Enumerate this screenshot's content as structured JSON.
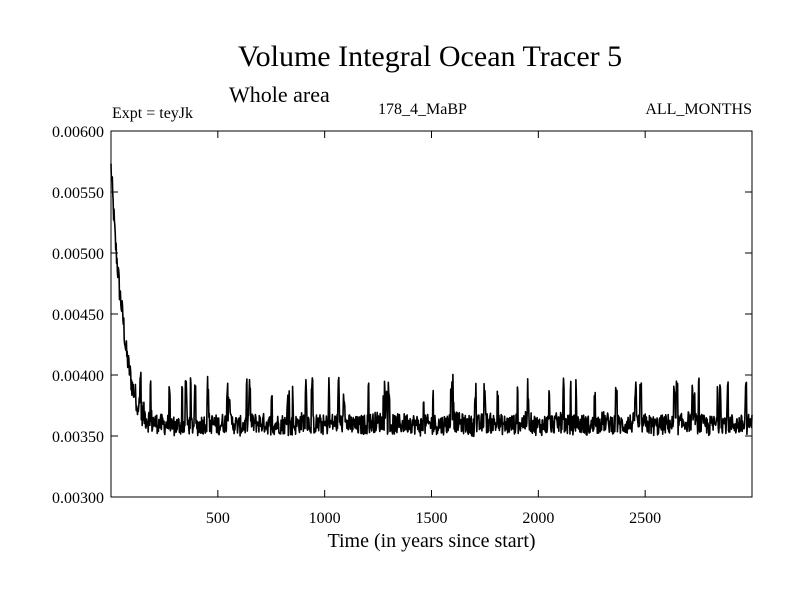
{
  "chart_data": {
    "type": "line",
    "title": "Volume Integral Ocean Tracer 5",
    "subtitle": "Whole area",
    "experiment_label": "Expt = teyJk",
    "run_label": "178_4_MaBP",
    "period_label": "ALL_MONTHS",
    "xlabel": "Time (in years since start)",
    "ylabel": "",
    "xlim": [
      0,
      3000
    ],
    "ylim": [
      0.003,
      0.006
    ],
    "x_ticks": [
      500,
      1000,
      1500,
      2000,
      2500
    ],
    "x_tick_labels": [
      "500",
      "1000",
      "1500",
      "2000",
      "2500"
    ],
    "y_ticks": [
      0.003,
      0.0035,
      0.004,
      0.0045,
      0.005,
      0.0055,
      0.006
    ],
    "y_tick_labels": [
      "0.00300",
      "0.00350",
      "0.00400",
      "0.00450",
      "0.00500",
      "0.00550",
      "0.00600"
    ],
    "grid": false,
    "series": [
      {
        "name": "Ocean Tracer 5",
        "color": "#000000",
        "x": [
          0,
          10,
          20,
          30,
          40,
          50,
          60,
          70,
          80,
          90,
          100,
          110,
          120,
          130,
          140,
          150,
          160,
          170,
          180,
          190,
          200,
          225,
          250,
          275,
          300,
          350,
          400,
          450,
          500,
          550,
          600,
          650,
          700,
          750,
          800,
          850,
          900,
          950,
          1000,
          1050,
          1100,
          1150,
          1200,
          1250,
          1300,
          1350,
          1400,
          1450,
          1500,
          1550,
          1600,
          1650,
          1700,
          1750,
          1800,
          1850,
          1900,
          1950,
          2000,
          2050,
          2100,
          2150,
          2200,
          2250,
          2300,
          2350,
          2400,
          2450,
          2500,
          2550,
          2600,
          2650,
          2700,
          2750,
          2800,
          2850,
          2900,
          2950,
          3000
        ],
        "values": [
          0.0057,
          0.0054,
          0.0051,
          0.0049,
          0.0047,
          0.00455,
          0.0044,
          0.0042,
          0.0041,
          0.004,
          0.0039,
          0.00385,
          0.0038,
          0.00375,
          0.0037,
          0.00368,
          0.00366,
          0.00364,
          0.00363,
          0.00362,
          0.00361,
          0.0036,
          0.00359,
          0.0036,
          0.00358,
          0.0036,
          0.00358,
          0.00361,
          0.00359,
          0.00362,
          0.00358,
          0.0036,
          0.00361,
          0.00359,
          0.0036,
          0.00358,
          0.00362,
          0.0036,
          0.00359,
          0.00361,
          0.0036,
          0.00358,
          0.0036,
          0.00362,
          0.00359,
          0.0036,
          0.00361,
          0.00358,
          0.0036,
          0.00359,
          0.00362,
          0.0036,
          0.00358,
          0.00361,
          0.0036,
          0.00359,
          0.0036,
          0.00362,
          0.00358,
          0.0036,
          0.00361,
          0.00359,
          0.0036,
          0.00358,
          0.00362,
          0.0036,
          0.00359,
          0.00361,
          0.0036,
          0.00358,
          0.0036,
          0.00359,
          0.00362,
          0.0036,
          0.00358,
          0.00361,
          0.0036,
          0.00359,
          0.0036
        ],
        "variability_amplitude": 0.0006
      }
    ]
  }
}
